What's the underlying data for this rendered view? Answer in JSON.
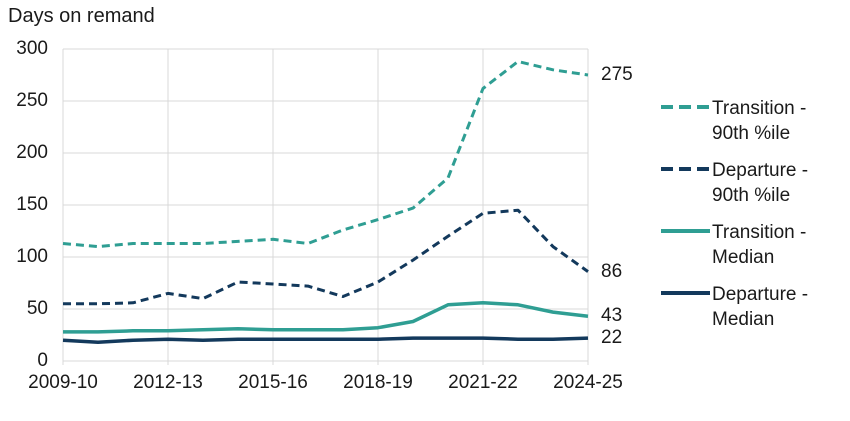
{
  "title": "Days on remand",
  "colors": {
    "teal": "#2f9e93",
    "navy": "#13395c",
    "gridline": "#d9d9d9",
    "text": "#1a1a1a"
  },
  "chart_data": {
    "type": "line",
    "title": "Days on remand",
    "x_labels": [
      "2009-10",
      "2012-13",
      "2015-16",
      "2018-19",
      "2021-22",
      "2024-25"
    ],
    "x_label_step": 3,
    "n_points": 16,
    "ylim": [
      0,
      300
    ],
    "yticks": [
      "0",
      "50",
      "100",
      "150",
      "200",
      "250",
      "300"
    ],
    "grid": true,
    "legend_position": "right",
    "series": [
      {
        "name": "Transition - 90th %ile",
        "style": "dashed",
        "color": "#2f9e93",
        "values": [
          113,
          110,
          113,
          113,
          113,
          115,
          117,
          113,
          126,
          136,
          147,
          176,
          262,
          288,
          280,
          275
        ],
        "end_label": "275"
      },
      {
        "name": "Departure - 90th %ile",
        "style": "dashed",
        "color": "#13395c",
        "values": [
          55,
          55,
          56,
          65,
          60,
          76,
          74,
          72,
          62,
          76,
          97,
          120,
          142,
          145,
          110,
          86
        ],
        "end_label": "86"
      },
      {
        "name": "Transition - Median",
        "style": "solid",
        "color": "#2f9e93",
        "values": [
          28,
          28,
          29,
          29,
          30,
          31,
          30,
          30,
          30,
          32,
          38,
          54,
          56,
          54,
          47,
          43
        ],
        "end_label": "43"
      },
      {
        "name": "Departure - Median",
        "style": "solid",
        "color": "#13395c",
        "values": [
          20,
          18,
          20,
          21,
          20,
          21,
          21,
          21,
          21,
          21,
          22,
          22,
          22,
          21,
          21,
          22
        ],
        "end_label": "22"
      }
    ]
  },
  "legend": {
    "items": [
      {
        "line1": "Transition -",
        "line2": "90th %ile",
        "color": "#2f9e93",
        "style": "dashed"
      },
      {
        "line1": "Departure -",
        "line2": "90th %ile",
        "color": "#13395c",
        "style": "dashed"
      },
      {
        "line1": "Transition -",
        "line2": "Median",
        "color": "#2f9e93",
        "style": "solid"
      },
      {
        "line1": "Departure -",
        "line2": "Median",
        "color": "#13395c",
        "style": "solid"
      }
    ]
  }
}
